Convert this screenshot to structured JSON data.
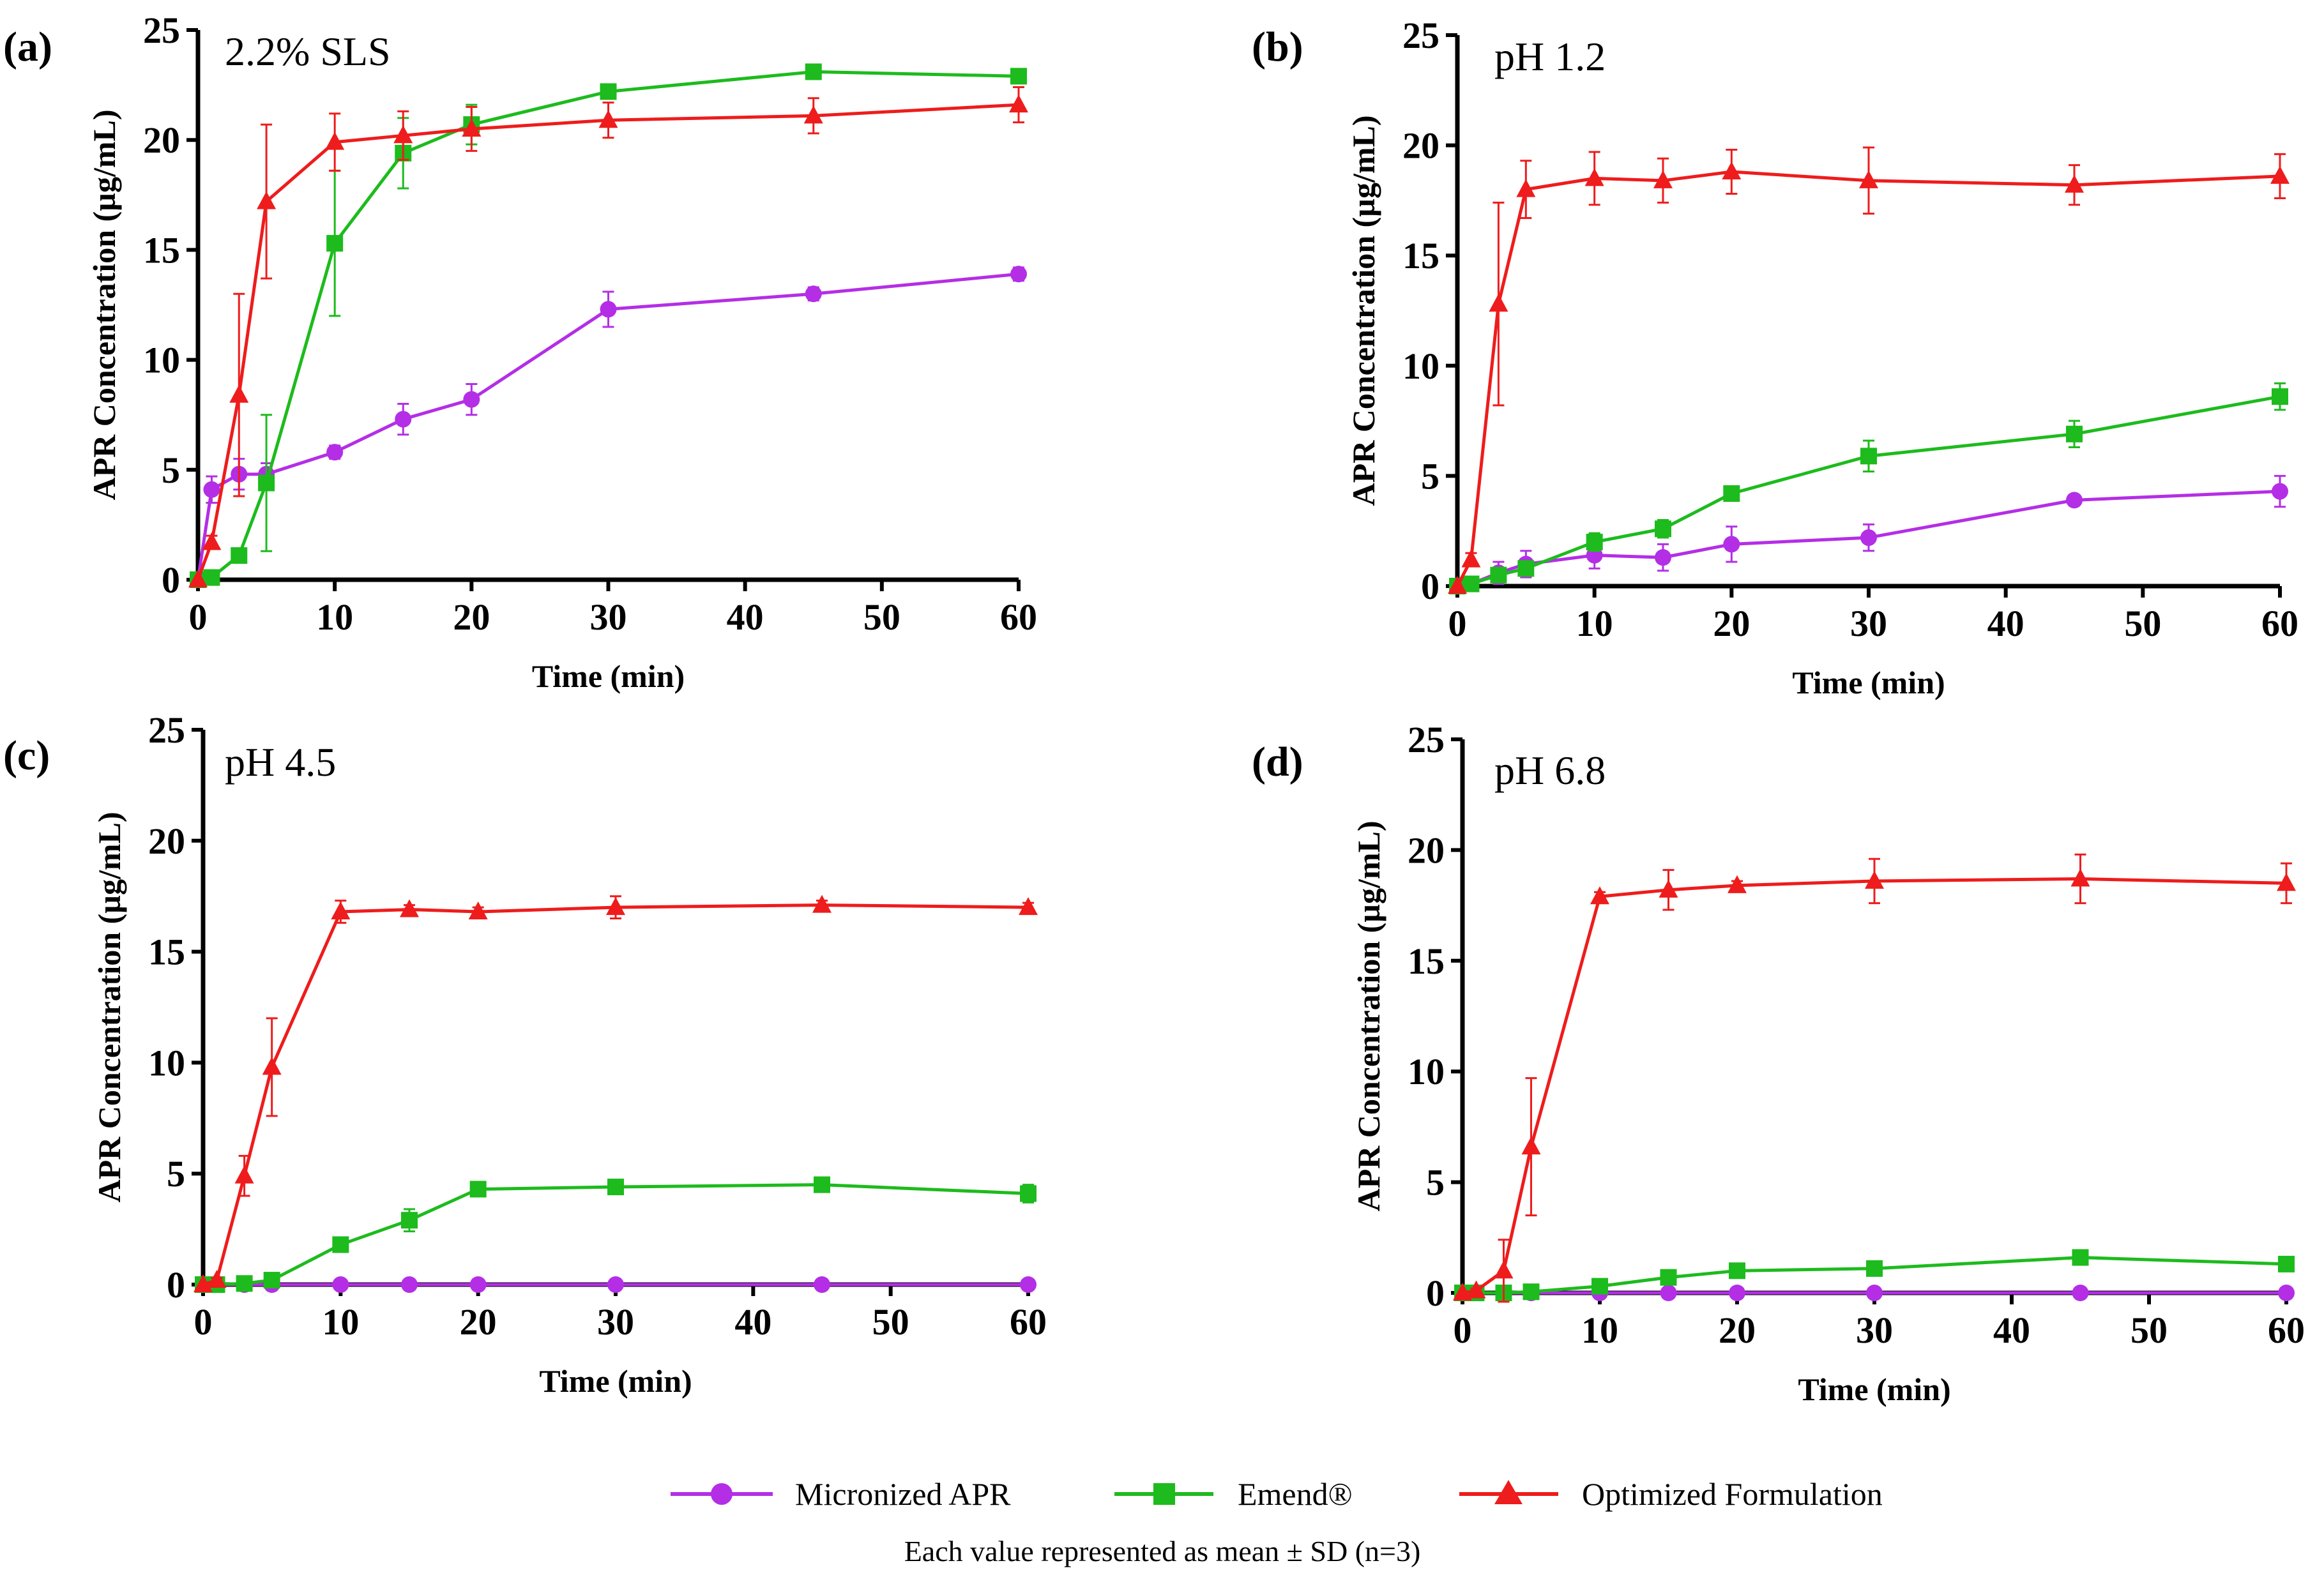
{
  "legend": [
    {
      "name": "Micronized APR",
      "color": "#b42ee6",
      "marker": "circle"
    },
    {
      "name": "Emend®",
      "color": "#1dbb1d",
      "marker": "square"
    },
    {
      "name": "Optimized Formulation",
      "color": "#ee1c1c",
      "marker": "triangle"
    }
  ],
  "footnote": "Each value represented as mean ± SD (n=3)",
  "chart_data": [
    {
      "panel": "(a)",
      "title": "2.2% SLS",
      "type": "line",
      "xlabel": "Time (min)",
      "ylabel": "APR Concentration (µg/mL)",
      "xlim": [
        0,
        60
      ],
      "ylim": [
        0,
        25
      ],
      "xticks": [
        0,
        10,
        20,
        30,
        40,
        50,
        60
      ],
      "yticks": [
        0,
        5,
        10,
        15,
        20,
        25
      ],
      "x": [
        0,
        1,
        3,
        5,
        10,
        15,
        20,
        30,
        45,
        60
      ],
      "series": [
        {
          "name": "Micronized APR",
          "values": [
            0,
            4.1,
            4.8,
            4.8,
            5.8,
            7.3,
            8.2,
            12.3,
            13.0,
            13.9
          ],
          "sd": [
            0,
            0.6,
            0.7,
            0.5,
            0.3,
            0.7,
            0.7,
            0.8,
            0.3,
            0.3
          ]
        },
        {
          "name": "Emend®",
          "values": [
            0,
            0.1,
            1.1,
            4.4,
            15.3,
            19.4,
            20.7,
            22.2,
            23.1,
            22.9
          ],
          "sd": [
            0,
            0.1,
            0.2,
            3.1,
            3.3,
            1.6,
            0.9,
            0.3,
            0.2,
            0.2
          ]
        },
        {
          "name": "Optimized Formulation",
          "values": [
            0,
            1.7,
            8.4,
            17.2,
            19.9,
            20.2,
            20.5,
            20.9,
            21.1,
            21.6
          ],
          "sd": [
            0,
            0.3,
            4.6,
            3.5,
            1.3,
            1.1,
            1.0,
            0.8,
            0.8,
            0.8
          ]
        }
      ]
    },
    {
      "panel": "(b)",
      "title": "pH 1.2",
      "type": "line",
      "xlabel": "Time (min)",
      "ylabel": "APR Concentration (µg/mL)",
      "xlim": [
        0,
        60
      ],
      "ylim": [
        0,
        25
      ],
      "xticks": [
        0,
        10,
        20,
        30,
        40,
        50,
        60
      ],
      "yticks": [
        0,
        5,
        10,
        15,
        20,
        25
      ],
      "x": [
        0,
        1,
        3,
        5,
        10,
        15,
        20,
        30,
        45,
        60
      ],
      "series": [
        {
          "name": "Micronized APR",
          "values": [
            0,
            0.1,
            0.6,
            1.0,
            1.4,
            1.3,
            1.9,
            2.2,
            3.9,
            4.3
          ],
          "sd": [
            0,
            0.1,
            0.5,
            0.6,
            0.6,
            0.6,
            0.8,
            0.6,
            0.2,
            0.7
          ]
        },
        {
          "name": "Emend®",
          "values": [
            0,
            0.1,
            0.5,
            0.8,
            2.0,
            2.6,
            4.2,
            5.9,
            6.9,
            8.6
          ],
          "sd": [
            0,
            0.1,
            0.2,
            0.3,
            0.4,
            0.4,
            0.3,
            0.7,
            0.6,
            0.6
          ]
        },
        {
          "name": "Optimized Formulation",
          "values": [
            0,
            1.2,
            12.8,
            18.0,
            18.5,
            18.4,
            18.8,
            18.4,
            18.2,
            18.6
          ],
          "sd": [
            0,
            0.3,
            4.6,
            1.3,
            1.2,
            1.0,
            1.0,
            1.5,
            0.9,
            1.0
          ]
        }
      ]
    },
    {
      "panel": "(c)",
      "title": "pH 4.5",
      "type": "line",
      "xlabel": "Time (min)",
      "ylabel": "APR Concentration (µg/mL)",
      "xlim": [
        0,
        60
      ],
      "ylim": [
        0,
        25
      ],
      "xticks": [
        0,
        10,
        20,
        30,
        40,
        50,
        60
      ],
      "yticks": [
        0,
        5,
        10,
        15,
        20,
        25
      ],
      "x": [
        0,
        1,
        3,
        5,
        10,
        15,
        20,
        30,
        45,
        60
      ],
      "series": [
        {
          "name": "Micronized APR",
          "values": [
            0,
            0,
            0,
            0,
            0,
            0,
            0,
            0,
            0,
            0
          ],
          "sd": [
            0,
            0,
            0,
            0,
            0,
            0,
            0,
            0,
            0,
            0
          ]
        },
        {
          "name": "Emend®",
          "values": [
            0,
            0,
            0.05,
            0.2,
            1.8,
            2.9,
            4.3,
            4.4,
            4.5,
            4.1
          ],
          "sd": [
            0,
            0,
            0.05,
            0.1,
            0.2,
            0.5,
            0.3,
            0.3,
            0.2,
            0.4
          ]
        },
        {
          "name": "Optimized Formulation",
          "values": [
            0,
            0.2,
            4.9,
            9.8,
            16.8,
            16.9,
            16.8,
            17.0,
            17.1,
            17.0
          ],
          "sd": [
            0,
            0.1,
            0.9,
            2.2,
            0.5,
            0.2,
            0.2,
            0.5,
            0.2,
            0.2
          ]
        }
      ]
    },
    {
      "panel": "(d)",
      "title": "pH 6.8",
      "type": "line",
      "xlabel": "Time (min)",
      "ylabel": "APR Concentration (µg/mL)",
      "xlim": [
        0,
        60
      ],
      "ylim": [
        0,
        25
      ],
      "xticks": [
        0,
        10,
        20,
        30,
        40,
        50,
        60
      ],
      "yticks": [
        0,
        5,
        10,
        15,
        20,
        25
      ],
      "x": [
        0,
        1,
        3,
        5,
        10,
        15,
        20,
        30,
        45,
        60
      ],
      "series": [
        {
          "name": "Micronized APR",
          "values": [
            0,
            0,
            0,
            0,
            0,
            0,
            0,
            0,
            0,
            0
          ],
          "sd": [
            0,
            0,
            0,
            0,
            0,
            0,
            0,
            0,
            0,
            0
          ]
        },
        {
          "name": "Emend®",
          "values": [
            0,
            0,
            0,
            0.05,
            0.3,
            0.7,
            1.0,
            1.1,
            1.6,
            1.3
          ],
          "sd": [
            0,
            0,
            0,
            0.05,
            0.1,
            0.1,
            0.1,
            0.1,
            0.2,
            0.1
          ]
        },
        {
          "name": "Optimized Formulation",
          "values": [
            0,
            0.1,
            1.0,
            6.6,
            17.9,
            18.2,
            18.4,
            18.6,
            18.7,
            18.5
          ],
          "sd": [
            0,
            0.1,
            1.4,
            3.1,
            0.2,
            0.9,
            0.2,
            1.0,
            1.1,
            0.9
          ]
        }
      ]
    }
  ]
}
